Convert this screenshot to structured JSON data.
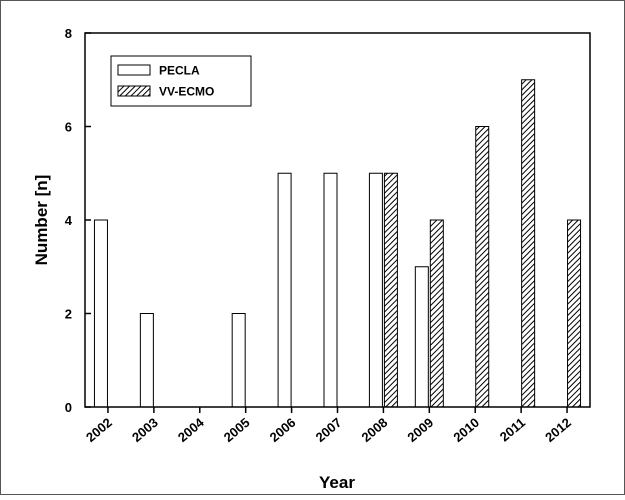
{
  "chart_data": {
    "type": "bar",
    "title": "",
    "xlabel": "Year",
    "ylabel": "Number [n]",
    "ylim": [
      0,
      8
    ],
    "yticks": [
      "0",
      "2",
      "4",
      "6",
      "8"
    ],
    "categories": [
      "2002",
      "2003",
      "2004",
      "2005",
      "2006",
      "2007",
      "2008",
      "2009",
      "2010",
      "2011",
      "2012"
    ],
    "series": [
      {
        "name": "PECLA",
        "pattern": "white",
        "values": [
          4,
          2,
          0,
          2,
          5,
          5,
          5,
          3,
          0,
          0,
          0
        ]
      },
      {
        "name": "VV-ECMO",
        "pattern": "hatched",
        "values": [
          0,
          0,
          0,
          0,
          0,
          0,
          5,
          4,
          6,
          7,
          4
        ]
      }
    ],
    "legend_position": "top-left",
    "grid": false
  }
}
